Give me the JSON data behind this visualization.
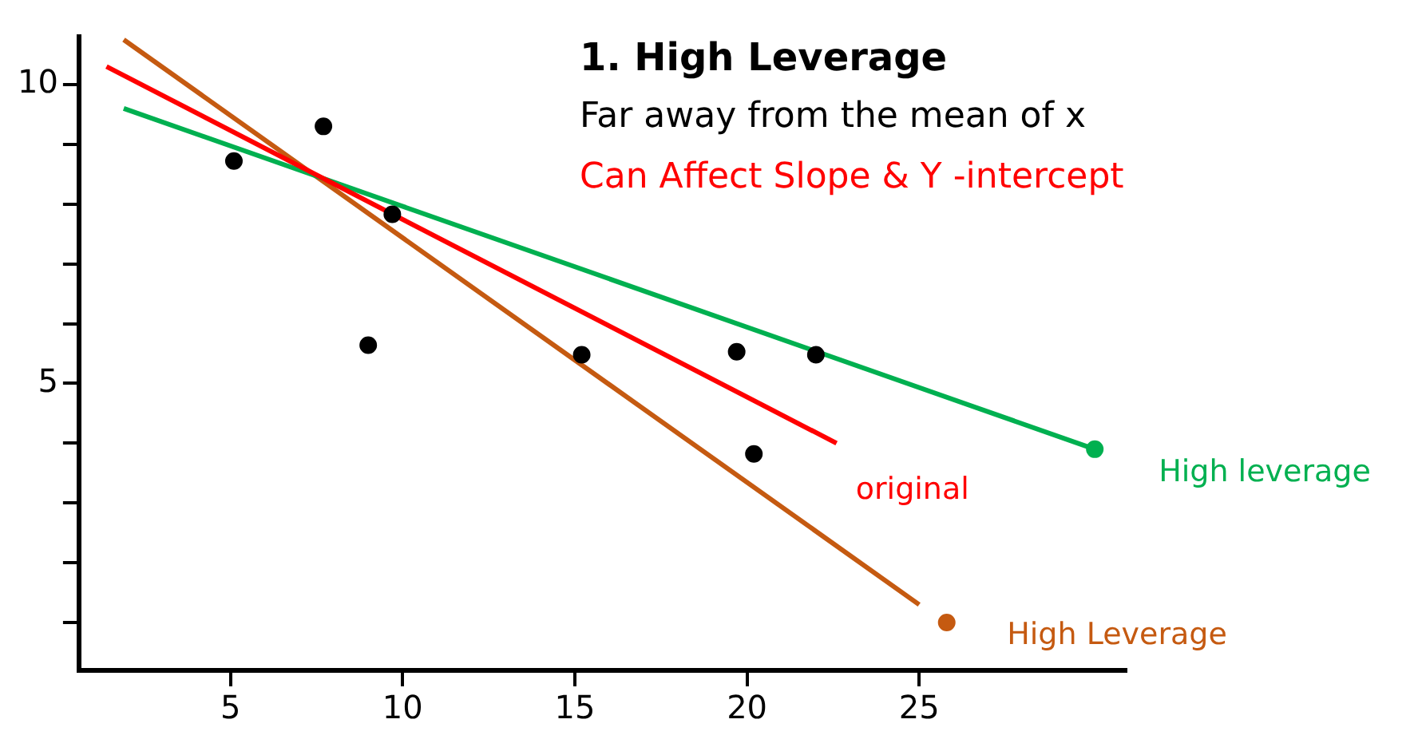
{
  "chart_data": {
    "type": "scatter",
    "title": "1. High Leverage",
    "subtitle": "Far away from the mean of x",
    "annotations": [
      "Can Affect Slope & Y -intercept"
    ],
    "xlim": [
      0.6,
      31
    ],
    "ylim": [
      0.2,
      10.8
    ],
    "xticks": [
      5,
      10,
      15,
      20,
      25
    ],
    "yticks": [
      {
        "value": 1,
        "label": null
      },
      {
        "value": 2,
        "label": null
      },
      {
        "value": 3,
        "label": null
      },
      {
        "value": 4,
        "label": null
      },
      5,
      {
        "value": 6,
        "label": null
      },
      {
        "value": 7,
        "label": null
      },
      {
        "value": 8,
        "label": null
      },
      {
        "value": 9,
        "label": null
      },
      10
    ],
    "grid": false,
    "legend": false,
    "series": [
      {
        "type": "scatter",
        "marker": "circle",
        "color": "#000000",
        "x": [
          5.1,
          7.7,
          9.7,
          9.0,
          15.2,
          19.7,
          20.2,
          22.0
        ],
        "values": [
          8.72,
          9.3,
          7.83,
          5.64,
          5.48,
          5.53,
          3.82,
          5.48
        ]
      },
      {
        "type": "line",
        "marker": "none",
        "name": "original",
        "color": "#ff0000",
        "x": [
          1.4,
          22.6
        ],
        "values": [
          10.3,
          4.0
        ]
      },
      {
        "type": "line",
        "marker": "none",
        "name": "High leverage",
        "color": "#00b050",
        "x": [
          1.9,
          30.1
        ],
        "values": [
          9.6,
          3.9
        ]
      },
      {
        "type": "line",
        "marker": "none",
        "name": "High Leverage",
        "color": "#c55a11",
        "x": [
          1.9,
          25.0
        ],
        "values": [
          10.75,
          1.3
        ]
      },
      {
        "type": "scatter",
        "marker": "circle",
        "color": "#00b050",
        "x": [
          30.1
        ],
        "values": [
          3.9
        ]
      },
      {
        "type": "scatter",
        "marker": "circle",
        "color": "#c55a11",
        "x": [
          25.8
        ],
        "values": [
          1.0
        ]
      }
    ]
  }
}
